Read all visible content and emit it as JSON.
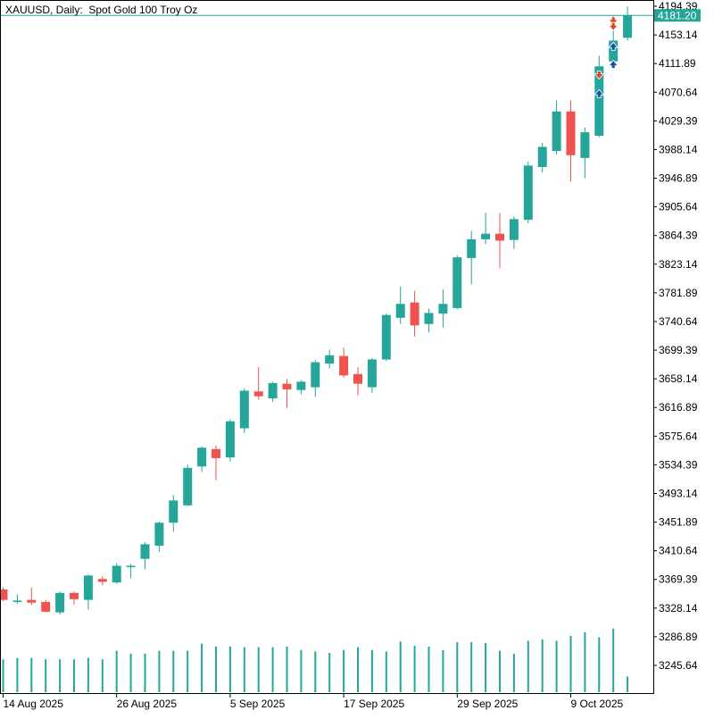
{
  "header": {
    "title": "XAUUSD, Daily:  Spot Gold 100 Troy Oz"
  },
  "price_tag": {
    "label": "4181.20"
  },
  "colors": {
    "up": "#26a69a",
    "down": "#ef5350",
    "axis": "#000000",
    "tag_bg": "#26a69a",
    "tag_text": "#ffffff",
    "arrow_buy": "#1e4fa8",
    "arrow_sell": "#e0481f"
  },
  "chart_data": {
    "type": "candlestick",
    "symbol": "XAUUSD",
    "timeframe": "Daily",
    "description": "Spot Gold 100 Troy Oz",
    "y_ticks": [
      "4194.39",
      "4153.14",
      "4111.89",
      "4070.64",
      "4029.39",
      "3988.14",
      "3946.89",
      "3905.64",
      "3864.39",
      "3823.14",
      "3781.89",
      "3740.64",
      "3699.39",
      "3658.14",
      "3616.89",
      "3575.64",
      "3534.39",
      "3493.14",
      "3451.89",
      "3410.64",
      "3369.39",
      "3328.14",
      "3286.89",
      "3245.64"
    ],
    "x_ticks": [
      "14 Aug 2025",
      "26 Aug 2025",
      "5 Sep 2025",
      "17 Sep 2025",
      "29 Sep 2025",
      "9 Oct 2025"
    ],
    "last_price": 4181.2,
    "candles": [
      {
        "o": 3355,
        "h": 3358,
        "l": 3338,
        "c": 3340
      },
      {
        "o": 3337,
        "h": 3348,
        "l": 3334,
        "c": 3339
      },
      {
        "o": 3340,
        "h": 3358,
        "l": 3333,
        "c": 3336
      },
      {
        "o": 3337,
        "h": 3340,
        "l": 3322,
        "c": 3323
      },
      {
        "o": 3322,
        "h": 3352,
        "l": 3319,
        "c": 3350
      },
      {
        "o": 3350,
        "h": 3352,
        "l": 3333,
        "c": 3341
      },
      {
        "o": 3340,
        "h": 3377,
        "l": 3326,
        "c": 3375
      },
      {
        "o": 3370,
        "h": 3374,
        "l": 3361,
        "c": 3366
      },
      {
        "o": 3365,
        "h": 3393,
        "l": 3363,
        "c": 3389
      },
      {
        "o": 3388,
        "h": 3392,
        "l": 3371,
        "c": 3389
      },
      {
        "o": 3399,
        "h": 3423,
        "l": 3384,
        "c": 3420
      },
      {
        "o": 3418,
        "h": 3453,
        "l": 3409,
        "c": 3451
      },
      {
        "o": 3451,
        "h": 3491,
        "l": 3438,
        "c": 3483
      },
      {
        "o": 3476,
        "h": 3535,
        "l": 3475,
        "c": 3530
      },
      {
        "o": 3532,
        "h": 3561,
        "l": 3524,
        "c": 3559
      },
      {
        "o": 3557,
        "h": 3562,
        "l": 3512,
        "c": 3544
      },
      {
        "o": 3545,
        "h": 3600,
        "l": 3539,
        "c": 3597
      },
      {
        "o": 3587,
        "h": 3644,
        "l": 3580,
        "c": 3641
      },
      {
        "o": 3640,
        "h": 3675,
        "l": 3628,
        "c": 3633
      },
      {
        "o": 3630,
        "h": 3654,
        "l": 3625,
        "c": 3652
      },
      {
        "o": 3651,
        "h": 3658,
        "l": 3616,
        "c": 3643
      },
      {
        "o": 3642,
        "h": 3656,
        "l": 3636,
        "c": 3654
      },
      {
        "o": 3646,
        "h": 3685,
        "l": 3632,
        "c": 3682
      },
      {
        "o": 3680,
        "h": 3700,
        "l": 3673,
        "c": 3692
      },
      {
        "o": 3691,
        "h": 3703,
        "l": 3660,
        "c": 3663
      },
      {
        "o": 3665,
        "h": 3675,
        "l": 3634,
        "c": 3651
      },
      {
        "o": 3646,
        "h": 3688,
        "l": 3638,
        "c": 3686
      },
      {
        "o": 3686,
        "h": 3752,
        "l": 3684,
        "c": 3750
      },
      {
        "o": 3746,
        "h": 3791,
        "l": 3737,
        "c": 3766
      },
      {
        "o": 3768,
        "h": 3785,
        "l": 3719,
        "c": 3735
      },
      {
        "o": 3737,
        "h": 3759,
        "l": 3725,
        "c": 3753
      },
      {
        "o": 3752,
        "h": 3787,
        "l": 3732,
        "c": 3766
      },
      {
        "o": 3760,
        "h": 3836,
        "l": 3758,
        "c": 3833
      },
      {
        "o": 3832,
        "h": 3871,
        "l": 3794,
        "c": 3859
      },
      {
        "o": 3859,
        "h": 3897,
        "l": 3852,
        "c": 3867
      },
      {
        "o": 3867,
        "h": 3897,
        "l": 3817,
        "c": 3857
      },
      {
        "o": 3858,
        "h": 3892,
        "l": 3845,
        "c": 3888
      },
      {
        "o": 3887,
        "h": 3971,
        "l": 3882,
        "c": 3965
      },
      {
        "o": 3963,
        "h": 3998,
        "l": 3955,
        "c": 3992
      },
      {
        "o": 3986,
        "h": 4059,
        "l": 3981,
        "c": 4043
      },
      {
        "o": 4043,
        "h": 4059,
        "l": 3942,
        "c": 3980
      },
      {
        "o": 3976,
        "h": 4020,
        "l": 3947,
        "c": 4013
      },
      {
        "o": 4008,
        "h": 4123,
        "l": 4006,
        "c": 4108
      },
      {
        "o": 4115,
        "h": 4181,
        "l": 4110,
        "c": 4145
      },
      {
        "o": 4149,
        "h": 4194,
        "l": 4145,
        "c": 4181
      }
    ],
    "volumes": [
      0.46,
      0.48,
      0.48,
      0.46,
      0.46,
      0.46,
      0.48,
      0.46,
      0.58,
      0.54,
      0.54,
      0.58,
      0.58,
      0.58,
      0.68,
      0.64,
      0.64,
      0.63,
      0.63,
      0.63,
      0.64,
      0.59,
      0.57,
      0.55,
      0.59,
      0.63,
      0.59,
      0.57,
      0.71,
      0.65,
      0.64,
      0.59,
      0.7,
      0.7,
      0.69,
      0.58,
      0.54,
      0.72,
      0.74,
      0.72,
      0.79,
      0.84,
      0.77,
      0.89,
      0.22
    ]
  }
}
